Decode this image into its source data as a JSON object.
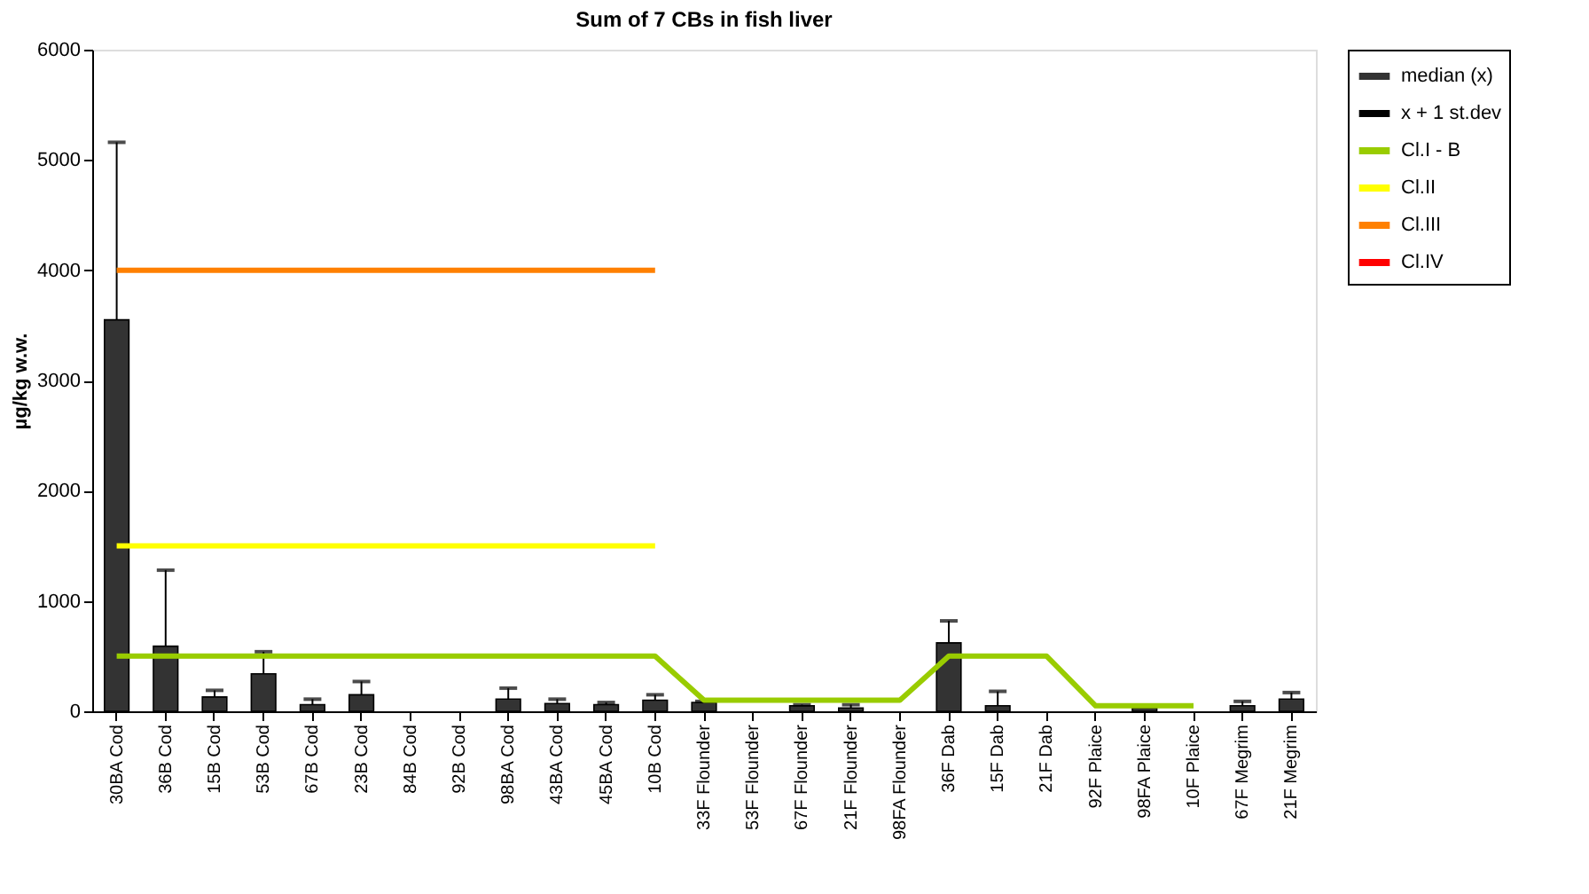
{
  "chart_data": {
    "type": "bar",
    "title": "Sum of 7 CBs in fish liver",
    "ylabel": "µg/kg w.w.",
    "categories": [
      "30BA Cod",
      "36B Cod",
      "15B Cod",
      "53B Cod",
      "67B Cod",
      "23B Cod",
      "84B Cod",
      "92B Cod",
      "98BA Cod",
      "43BA Cod",
      "45BA Cod",
      "10B Cod",
      "33F Flounder",
      "53F Flounder",
      "67F Flounder",
      "21F Flounder",
      "98FA Flounder",
      "36F Dab",
      "15F Dab",
      "21F Dab",
      "92F Plaice",
      "98FA Plaice",
      "10F Plaice",
      "67F Megrim",
      "21F Megrim"
    ],
    "series": [
      {
        "name": "median (x)",
        "color": "#333333",
        "values": [
          3550,
          590,
          130,
          340,
          60,
          150,
          null,
          null,
          110,
          70,
          60,
          100,
          80,
          null,
          50,
          30,
          null,
          620,
          50,
          null,
          null,
          30,
          null,
          50,
          110
        ],
        "errors": [
          [
            3550,
            5160
          ],
          [
            590,
            1280
          ],
          [
            130,
            190
          ],
          [
            340,
            540
          ],
          [
            60,
            110
          ],
          [
            150,
            270
          ],
          null,
          null,
          [
            110,
            210
          ],
          [
            70,
            110
          ],
          [
            60,
            80
          ],
          [
            100,
            150
          ],
          [
            80,
            90
          ],
          null,
          [
            50,
            60
          ],
          [
            30,
            60
          ],
          null,
          [
            620,
            820
          ],
          [
            50,
            180
          ],
          null,
          null,
          [
            30,
            40
          ],
          null,
          [
            50,
            90
          ],
          [
            110,
            170
          ]
        ]
      },
      {
        "name": "x + 1 st.dev",
        "type": "scatter",
        "color": "#000000",
        "values": [
          null,
          null,
          null,
          null,
          null,
          null,
          null,
          null,
          null,
          null,
          null,
          null,
          null,
          null,
          null,
          null,
          null,
          null,
          null,
          null,
          null,
          null,
          null,
          null,
          null
        ]
      },
      {
        "name": "Cl.I - B",
        "type": "line",
        "color": "#99cc00",
        "values": [
          500,
          500,
          500,
          500,
          500,
          500,
          500,
          500,
          500,
          500,
          500,
          500,
          100,
          100,
          100,
          100,
          100,
          500,
          500,
          500,
          50,
          50,
          50,
          null,
          null
        ]
      },
      {
        "name": "Cl.II",
        "type": "line",
        "color": "#ffff00",
        "values": [
          1500,
          1500,
          1500,
          1500,
          1500,
          1500,
          1500,
          1500,
          1500,
          1500,
          1500,
          1500,
          null,
          null,
          null,
          null,
          null,
          null,
          null,
          null,
          null,
          null,
          null,
          null,
          null
        ]
      },
      {
        "name": "Cl.III",
        "type": "line",
        "color": "#ff8000",
        "values": [
          4000,
          4000,
          4000,
          4000,
          4000,
          4000,
          4000,
          4000,
          4000,
          4000,
          4000,
          4000,
          null,
          null,
          null,
          null,
          null,
          null,
          null,
          null,
          null,
          null,
          null,
          null,
          null
        ]
      },
      {
        "name": "Cl.IV",
        "type": "line",
        "color": "#ff0000",
        "values": [
          null,
          null,
          null,
          null,
          null,
          null,
          null,
          null,
          null,
          null,
          null,
          null,
          null,
          null,
          null,
          null,
          null,
          null,
          null,
          null,
          null,
          null,
          null,
          null,
          null
        ]
      }
    ],
    "ylim": [
      0,
      6000
    ],
    "yticks": [
      0,
      1000,
      2000,
      3000,
      4000,
      5000,
      6000
    ],
    "grid": false,
    "legend": "right"
  }
}
